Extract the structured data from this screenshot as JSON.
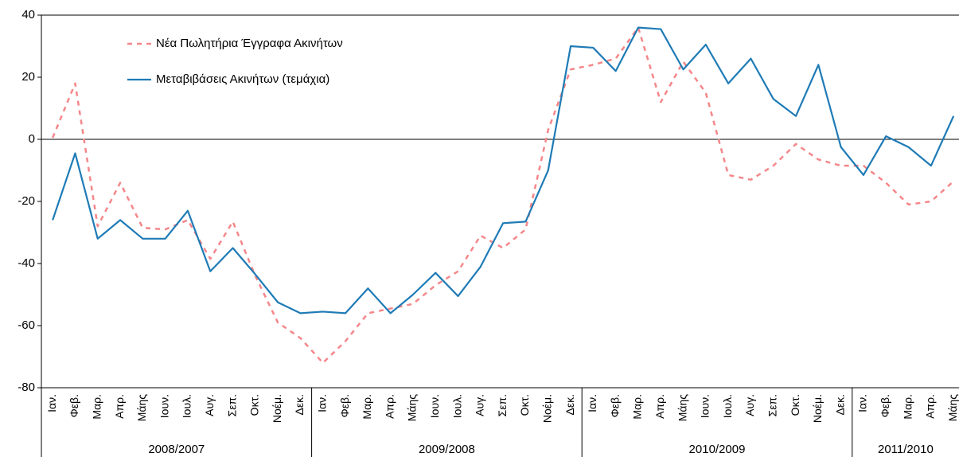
{
  "chart_data": {
    "type": "line",
    "categories": [
      "Ιαν.",
      "Φεβ.",
      "Μαρ.",
      "Απρ.",
      "Μάης",
      "Ιουν.",
      "Ιουλ.",
      "Αυγ.",
      "Σεπ.",
      "Οκτ.",
      "Νοέμ.",
      "Δεκ.",
      "Ιαν.",
      "Φεβ.",
      "Μαρ.",
      "Απρ.",
      "Μάης",
      "Ιουν.",
      "Ιουλ.",
      "Αυγ.",
      "Σεπ.",
      "Οκτ.",
      "Νοέμ.",
      "Δεκ.",
      "Ιαν.",
      "Φεβ.",
      "Μαρ.",
      "Απρ.",
      "Μάης",
      "Ιουν.",
      "Ιουλ.",
      "Αυγ.",
      "Σεπ.",
      "Οκτ.",
      "Νοέμ.",
      "Δεκ.",
      "Ιαν.",
      "Φεβ.",
      "Μαρ.",
      "Απρ.",
      "Μάης"
    ],
    "groups": [
      {
        "label": "2008/2007",
        "count": 12
      },
      {
        "label": "2009/2008",
        "count": 12
      },
      {
        "label": "2010/2009",
        "count": 12
      },
      {
        "label": "2011/2010",
        "count": 5
      }
    ],
    "series": [
      {
        "name": "Νέα Πωλητήρια Έγγραφα Ακινήτων",
        "color": "#f4878a",
        "dashed": true,
        "values": [
          0.5,
          18,
          -28,
          -14,
          -28.5,
          -29,
          -26,
          -38.5,
          -26.5,
          -44,
          -59,
          -64,
          -72,
          -65,
          -56,
          -54.5,
          -53,
          -47,
          -42.5,
          -31,
          -35,
          -29,
          3,
          22.5,
          24,
          26,
          36,
          12,
          25,
          15,
          -11.5,
          -13,
          -8.5,
          -1.5,
          -6.5,
          -8.5,
          -8.5,
          -14,
          -21,
          -20,
          -13.5
        ]
      },
      {
        "name": "Μεταβιβάσεις Ακινήτων (τεμάχια)",
        "color": "#1f7bb6",
        "dashed": false,
        "values": [
          -26,
          -4.5,
          -32,
          -26,
          -32,
          -32,
          -23,
          -42.5,
          -35,
          -43.5,
          -52.5,
          -56,
          -55.5,
          -56,
          -48,
          -56,
          -50,
          -43,
          -50.5,
          -41,
          -27,
          -26.5,
          -10,
          30,
          29.5,
          22,
          36,
          35.5,
          22.5,
          30.5,
          18,
          26,
          13,
          7.5,
          24,
          -2.5,
          -11.5,
          1,
          -2.5,
          -8.5,
          7.5
        ]
      }
    ],
    "ylim": [
      -80,
      40
    ],
    "yticks": [
      40,
      20,
      0,
      -20,
      -40,
      -60,
      -80
    ]
  }
}
